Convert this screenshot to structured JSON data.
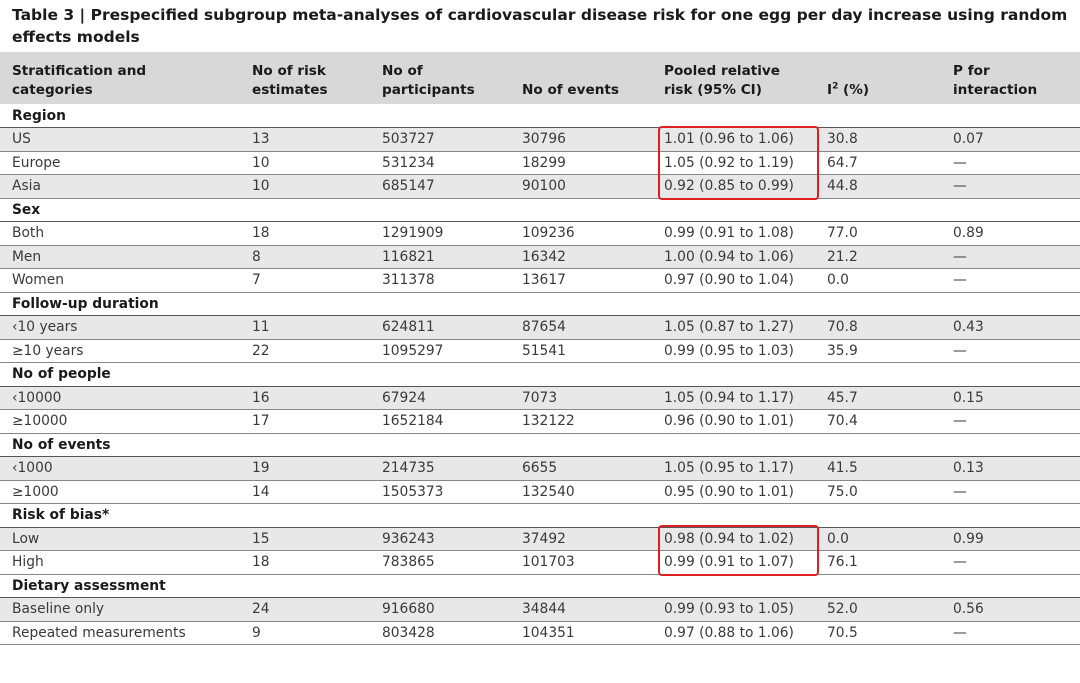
{
  "title": "Table 3 | Prespecified subgroup meta-analyses of cardiovascular disease risk for one egg per day increase using random effects models",
  "columns": [
    {
      "line1": "Stratification and",
      "line2": "categories"
    },
    {
      "line1": "No of risk",
      "line2": "estimates"
    },
    {
      "line1": "No of",
      "line2": "participants"
    },
    {
      "line1": "",
      "line2": "No of events"
    },
    {
      "line1": "Pooled relative",
      "line2": "risk (95% CI)"
    },
    {
      "line1": "",
      "line2": "I",
      "sup": "2",
      "suffix": " (%)"
    },
    {
      "line1": "P for",
      "line2": "interaction"
    }
  ],
  "sections": [
    {
      "name": "Region",
      "rows": [
        [
          "US",
          "13",
          "503727",
          "30796",
          "1.01 (0.96 to 1.06)",
          "30.8",
          "0.07"
        ],
        [
          "Europe",
          "10",
          "531234",
          "18299",
          "1.05 (0.92 to 1.19)",
          "64.7",
          "—"
        ],
        [
          "Asia",
          "10",
          "685147",
          "90100",
          "0.92 (0.85 to 0.99)",
          "44.8",
          "—"
        ]
      ]
    },
    {
      "name": "Sex",
      "rows": [
        [
          "Both",
          "18",
          "1291909",
          "109236",
          "0.99 (0.91 to 1.08)",
          "77.0",
          "0.89"
        ],
        [
          "Men",
          "8",
          "116821",
          "16342",
          "1.00 (0.94 to 1.06)",
          "21.2",
          "—"
        ],
        [
          "Women",
          "7",
          "311378",
          "13617",
          "0.97 (0.90 to 1.04)",
          "0.0",
          "—"
        ]
      ]
    },
    {
      "name": "Follow-up duration",
      "rows": [
        [
          "‹10 years",
          "11",
          "624811",
          "87654",
          "1.05 (0.87 to 1.27)",
          "70.8",
          "0.43"
        ],
        [
          "≥10 years",
          "22",
          "1095297",
          "51541",
          "0.99 (0.95 to 1.03)",
          "35.9",
          "—"
        ]
      ]
    },
    {
      "name": "No of people",
      "rows": [
        [
          "‹10000",
          "16",
          "67924",
          "7073",
          "1.05 (0.94 to 1.17)",
          "45.7",
          "0.15"
        ],
        [
          "≥10000",
          "17",
          "1652184",
          "132122",
          "0.96 (0.90 to 1.01)",
          "70.4",
          "—"
        ]
      ]
    },
    {
      "name": "No of events",
      "rows": [
        [
          "‹1000",
          "19",
          "214735",
          "6655",
          "1.05 (0.95 to 1.17)",
          "41.5",
          "0.13"
        ],
        [
          "≥1000",
          "14",
          "1505373",
          "132540",
          "0.95 (0.90 to 1.01)",
          "75.0",
          "—"
        ]
      ]
    },
    {
      "name": "Risk of bias*",
      "rows": [
        [
          "Low",
          "15",
          "936243",
          "37492",
          "0.98 (0.94 to 1.02)",
          "0.0",
          "0.99"
        ],
        [
          "High",
          "18",
          "783865",
          "101703",
          "0.99 (0.91 to 1.07)",
          "76.1",
          "—"
        ]
      ]
    },
    {
      "name": "Dietary assessment",
      "rows": [
        [
          "Baseline only",
          "24",
          "916680",
          "34844",
          "0.99 (0.93 to 1.05)",
          "52.0",
          "0.56"
        ],
        [
          "Repeated measurements",
          "9",
          "803428",
          "104351",
          "0.97 (0.88 to 1.06)",
          "70.5",
          "—"
        ]
      ]
    }
  ],
  "highlight_color": "#e02020",
  "highlighted_groups": [
    "Region",
    "Risk of bias*"
  ]
}
